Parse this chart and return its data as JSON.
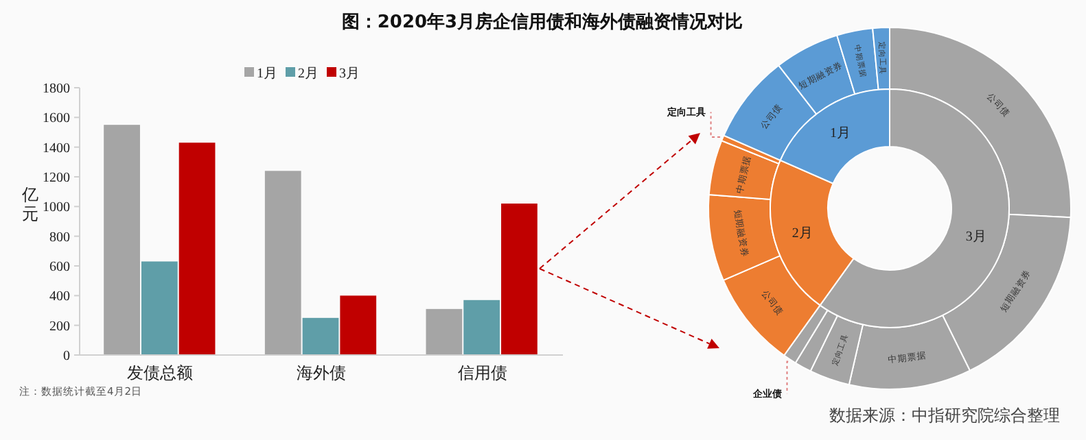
{
  "chart_data": [
    {
      "type": "bar",
      "title": "图：2020年3月房企信用债和海外债融资情况对比",
      "ylabel": "亿元",
      "categories": [
        "发债总额",
        "海外债",
        "信用债"
      ],
      "series": [
        {
          "name": "1月",
          "color": "#a5a5a5",
          "values": [
            1550,
            1240,
            310
          ]
        },
        {
          "name": "2月",
          "color": "#5f9ea8",
          "values": [
            630,
            250,
            370
          ]
        },
        {
          "name": "3月",
          "color": "#c00000",
          "values": [
            1430,
            400,
            1020
          ]
        }
      ],
      "ylim": [
        0,
        1800
      ],
      "yticks": [
        0,
        200,
        400,
        600,
        800,
        1000,
        1200,
        1400,
        1600,
        1800
      ],
      "grid": false,
      "legend": "top",
      "annotations": [
        "注：数据统计截至4月2日",
        "数据来源：中指研究院综合整理"
      ]
    },
    {
      "type": "donut",
      "categories": [
        "公司债",
        "短期融资券",
        "中期票据",
        "定向工具",
        null,
        "企业债",
        "公司债",
        "短期融资券",
        "中期票据",
        "定向工具",
        "公司债",
        "短期融资券",
        "中期票据",
        "定向工具"
      ],
      "values": [
        25.8,
        16.9,
        10.9,
        3.6,
        1.5,
        1.2,
        8.6,
        7.7,
        4.9,
        0.5,
        7.9,
        5.8,
        3.2,
        1.5
      ],
      "colors": [
        "#a5a5a5",
        "#a5a5a5",
        "#a5a5a5",
        "#a5a5a5",
        "#a5a5a5",
        "#a5a5a5",
        "#ed7d31",
        "#ed7d31",
        "#ed7d31",
        "#ed7d31",
        "#5b9bd5",
        "#5b9bd5",
        "#5b9bd5",
        "#5b9bd5"
      ]
    },
    {
      "type": "donut",
      "categories": [
        "3月",
        "2月",
        "1月"
      ],
      "values": [
        59.9,
        21.7,
        18.4
      ],
      "colors": [
        "#a5a5a5",
        "#ed7d31",
        "#5b9bd5"
      ]
    }
  ]
}
